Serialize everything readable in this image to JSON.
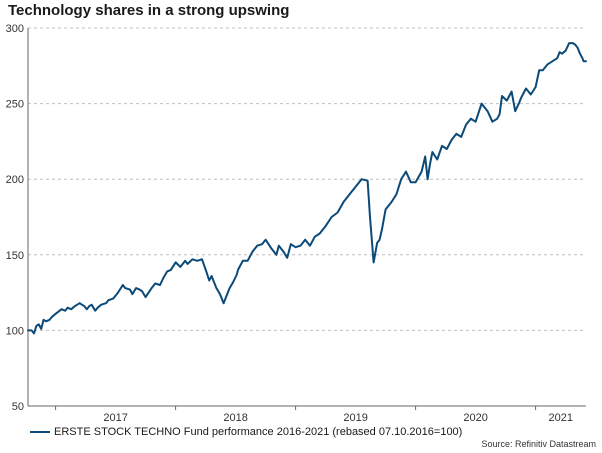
{
  "header": {
    "title": "Technology shares in a strong upswing"
  },
  "footer": {
    "source": "Source: Refinitiv Datastream"
  },
  "colors": {
    "line": "#0b4a78",
    "grid": "#c0c0c0",
    "axis": "#666666"
  },
  "chart_data": {
    "type": "line",
    "title": "Technology shares in a strong upswing",
    "xlabel": "",
    "ylabel": "",
    "xlim": [
      2016.77,
      2021.42
    ],
    "ylim": [
      50,
      300
    ],
    "y_ticks": [
      50,
      100,
      150,
      200,
      250,
      300
    ],
    "x_tick_labels": [
      "2017",
      "2018",
      "2019",
      "2020",
      "2021"
    ],
    "x_tick_values": [
      2017.0,
      2018.0,
      2019.0,
      2020.0,
      2021.0
    ],
    "grid": "horizontal dashed",
    "legend": "bottom",
    "series": [
      {
        "name": "ERSTE STOCK TECHNO Fund performance 2016-2021 (rebased 07.10.2016=100)",
        "x": [
          2016.77,
          2016.8,
          2016.82,
          2016.84,
          2016.86,
          2016.88,
          2016.9,
          2016.92,
          2016.95,
          2016.97,
          2017.0,
          2017.05,
          2017.08,
          2017.1,
          2017.13,
          2017.16,
          2017.2,
          2017.24,
          2017.26,
          2017.28,
          2017.3,
          2017.33,
          2017.35,
          2017.38,
          2017.42,
          2017.44,
          2017.48,
          2017.52,
          2017.56,
          2017.58,
          2017.62,
          2017.64,
          2017.67,
          2017.7,
          2017.72,
          2017.75,
          2017.8,
          2017.83,
          2017.87,
          2017.9,
          2017.93,
          2017.96,
          2018.0,
          2018.04,
          2018.08,
          2018.1,
          2018.14,
          2018.18,
          2018.22,
          2018.26,
          2018.28,
          2018.3,
          2018.34,
          2018.37,
          2018.4,
          2018.45,
          2018.48,
          2018.51,
          2018.52,
          2018.56,
          2018.6,
          2018.64,
          2018.68,
          2018.72,
          2018.75,
          2018.8,
          2018.84,
          2018.86,
          2018.9,
          2018.93,
          2018.96,
          2019.0,
          2019.04,
          2019.08,
          2019.12,
          2019.16,
          2019.2,
          2019.25,
          2019.3,
          2019.35,
          2019.4,
          2019.45,
          2019.5,
          2019.55,
          2019.6,
          2019.62,
          2019.65,
          2019.68,
          2019.7,
          2019.72,
          2019.75,
          2019.8,
          2019.84,
          2019.88,
          2019.92,
          2019.96,
          2020.0,
          2020.05,
          2020.08,
          2020.1,
          2020.12,
          2020.14,
          2020.18,
          2020.22,
          2020.26,
          2020.3,
          2020.34,
          2020.38,
          2020.42,
          2020.46,
          2020.5,
          2020.55,
          2020.6,
          2020.64,
          2020.68,
          2020.7,
          2020.72,
          2020.76,
          2020.8,
          2020.83,
          2020.86,
          2020.88,
          2020.92,
          2020.96,
          2021.0,
          2021.03,
          2021.06,
          2021.1,
          2021.14,
          2021.18,
          2021.2,
          2021.22,
          2021.25,
          2021.28,
          2021.31,
          2021.33,
          2021.35,
          2021.37,
          2021.39,
          2021.4,
          2021.42
        ],
        "values": [
          100,
          100,
          98,
          103,
          104,
          101,
          107,
          106,
          107,
          109,
          111,
          114,
          113,
          115,
          114,
          116,
          118,
          116,
          114,
          116,
          117,
          113,
          115,
          117,
          118,
          120,
          121,
          125,
          130,
          128,
          127,
          124,
          128,
          127,
          126,
          122,
          128,
          131,
          130,
          135,
          139,
          140,
          145,
          142,
          146,
          144,
          147,
          146,
          147,
          138,
          133,
          136,
          128,
          124,
          118,
          128,
          132,
          137,
          140,
          146,
          146,
          152,
          156,
          157,
          160,
          154,
          150,
          156,
          152,
          148,
          157,
          155,
          156,
          160,
          156,
          162,
          164,
          169,
          175,
          178,
          185,
          190,
          195,
          200,
          199,
          175,
          145,
          158,
          160,
          167,
          180,
          185,
          190,
          200,
          205,
          198,
          198,
          205,
          215,
          200,
          210,
          218,
          213,
          222,
          220,
          226,
          230,
          228,
          236,
          240,
          238,
          250,
          245,
          238,
          240,
          243,
          255,
          252,
          258,
          245,
          250,
          254,
          260,
          256,
          261,
          272,
          272,
          276,
          278,
          280,
          284,
          283,
          285,
          290,
          290,
          289,
          287,
          283,
          280,
          278,
          278
        ]
      }
    ]
  }
}
